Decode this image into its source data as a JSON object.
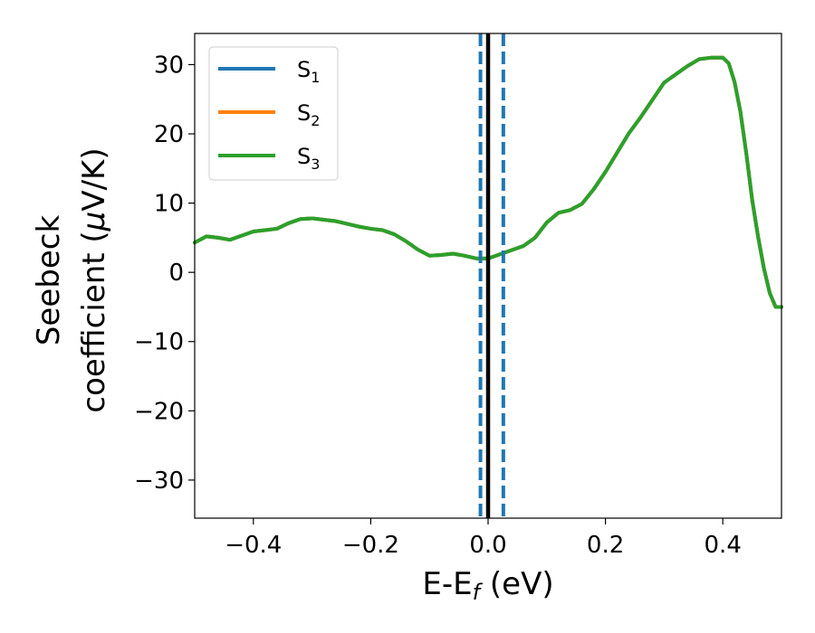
{
  "chart_data": {
    "type": "line",
    "xlabel": {
      "main": "E-E",
      "sub": "f",
      "unit": " (eV)"
    },
    "ylabel": {
      "line1": "Seebeck",
      "line2_a": "coefficient  (",
      "mu": "μ",
      "line2_b": "V/K)"
    },
    "xlim": [
      -0.5,
      0.5
    ],
    "ylim": [
      -35.5,
      34.5
    ],
    "xticks": [
      -0.4,
      -0.2,
      0.0,
      0.2,
      0.4
    ],
    "xtick_labels": [
      "−0.4",
      "−0.2",
      "0.0",
      "0.2",
      "0.4"
    ],
    "yticks": [
      -30,
      -20,
      -10,
      0,
      10,
      20,
      30
    ],
    "ytick_labels": [
      "−30",
      "−20",
      "−10",
      "0",
      "10",
      "20",
      "30"
    ],
    "legend_position": "top-left",
    "series": [
      {
        "name": "S",
        "sub": "1",
        "color": "#1f77b4",
        "x": [
          -0.5,
          -0.48,
          -0.46,
          -0.44,
          -0.42,
          -0.4,
          -0.38,
          -0.36,
          -0.34,
          -0.32,
          -0.3,
          -0.28,
          -0.26,
          -0.24,
          -0.22,
          -0.2,
          -0.18,
          -0.16,
          -0.14,
          -0.12,
          -0.1,
          -0.08,
          -0.06,
          -0.04,
          -0.02,
          0.0,
          0.02,
          0.04,
          0.06,
          0.08,
          0.1,
          0.12,
          0.14,
          0.16,
          0.18,
          0.2,
          0.22,
          0.24,
          0.26,
          0.28,
          0.3,
          0.32,
          0.34,
          0.36,
          0.38,
          0.4,
          0.41,
          0.42,
          0.43,
          0.44,
          0.45,
          0.46,
          0.47,
          0.48,
          0.49,
          0.5
        ],
        "y": [
          4.3,
          5.2,
          5.0,
          4.7,
          5.3,
          5.9,
          6.1,
          6.3,
          7.1,
          7.7,
          7.8,
          7.6,
          7.4,
          7.0,
          6.6,
          6.3,
          6.1,
          5.5,
          4.5,
          3.3,
          2.4,
          2.5,
          2.7,
          2.4,
          2.0,
          2.0,
          2.6,
          3.2,
          3.8,
          5.0,
          7.2,
          8.6,
          9.0,
          9.9,
          12.0,
          14.5,
          17.3,
          20.1,
          22.4,
          24.9,
          27.4,
          28.6,
          29.8,
          30.8,
          31.0,
          31.0,
          30.2,
          27.5,
          23.2,
          17.2,
          10.5,
          5.2,
          0.6,
          -3.0,
          -5.0,
          -5.0
        ]
      },
      {
        "name": "S",
        "sub": "2",
        "color": "#ff7f0e",
        "x": [
          -0.5,
          -0.48,
          -0.46,
          -0.44,
          -0.42,
          -0.4,
          -0.38,
          -0.36,
          -0.34,
          -0.32,
          -0.3,
          -0.28,
          -0.26,
          -0.24,
          -0.22,
          -0.2,
          -0.18,
          -0.16,
          -0.14,
          -0.12,
          -0.1,
          -0.08,
          -0.06,
          -0.04,
          -0.02,
          0.0,
          0.02,
          0.04,
          0.06,
          0.08,
          0.1,
          0.12,
          0.14,
          0.16,
          0.18,
          0.2,
          0.22,
          0.24,
          0.26,
          0.28,
          0.3,
          0.32,
          0.34,
          0.36,
          0.38,
          0.4,
          0.41,
          0.42,
          0.43,
          0.44,
          0.45,
          0.46,
          0.47,
          0.48,
          0.49,
          0.5
        ],
        "y": [
          4.3,
          5.2,
          5.0,
          4.7,
          5.3,
          5.9,
          6.1,
          6.3,
          7.1,
          7.7,
          7.8,
          7.6,
          7.4,
          7.0,
          6.6,
          6.3,
          6.1,
          5.5,
          4.5,
          3.3,
          2.4,
          2.5,
          2.7,
          2.4,
          2.0,
          2.0,
          2.6,
          3.2,
          3.8,
          5.0,
          7.2,
          8.6,
          9.0,
          9.9,
          12.0,
          14.5,
          17.3,
          20.1,
          22.4,
          24.9,
          27.4,
          28.6,
          29.8,
          30.8,
          31.0,
          31.0,
          30.2,
          27.5,
          23.2,
          17.2,
          10.5,
          5.2,
          0.6,
          -3.0,
          -5.0,
          -5.0
        ]
      },
      {
        "name": "S",
        "sub": "3",
        "color": "#2ca02c",
        "x": [
          -0.5,
          -0.48,
          -0.46,
          -0.44,
          -0.42,
          -0.4,
          -0.38,
          -0.36,
          -0.34,
          -0.32,
          -0.3,
          -0.28,
          -0.26,
          -0.24,
          -0.22,
          -0.2,
          -0.18,
          -0.16,
          -0.14,
          -0.12,
          -0.1,
          -0.08,
          -0.06,
          -0.04,
          -0.02,
          0.0,
          0.02,
          0.04,
          0.06,
          0.08,
          0.1,
          0.12,
          0.14,
          0.16,
          0.18,
          0.2,
          0.22,
          0.24,
          0.26,
          0.28,
          0.3,
          0.32,
          0.34,
          0.36,
          0.38,
          0.4,
          0.41,
          0.42,
          0.43,
          0.44,
          0.45,
          0.46,
          0.47,
          0.48,
          0.49,
          0.5
        ],
        "y": [
          4.3,
          5.2,
          5.0,
          4.7,
          5.3,
          5.9,
          6.1,
          6.3,
          7.1,
          7.7,
          7.8,
          7.6,
          7.4,
          7.0,
          6.6,
          6.3,
          6.1,
          5.5,
          4.5,
          3.3,
          2.4,
          2.5,
          2.7,
          2.4,
          2.0,
          2.0,
          2.6,
          3.2,
          3.8,
          5.0,
          7.2,
          8.6,
          9.0,
          9.9,
          12.0,
          14.5,
          17.3,
          20.1,
          22.4,
          24.9,
          27.4,
          28.6,
          29.8,
          30.8,
          31.0,
          31.0,
          30.2,
          27.5,
          23.2,
          17.2,
          10.5,
          5.2,
          0.6,
          -3.0,
          -5.0,
          -5.0
        ]
      }
    ],
    "vlines": [
      {
        "x": -0.013,
        "style": "dashed",
        "color": "#1f77b4"
      },
      {
        "x": 0.026,
        "style": "dashed",
        "color": "#1f77b4"
      },
      {
        "x": 0.0,
        "style": "solid",
        "color": "#000000"
      }
    ]
  }
}
